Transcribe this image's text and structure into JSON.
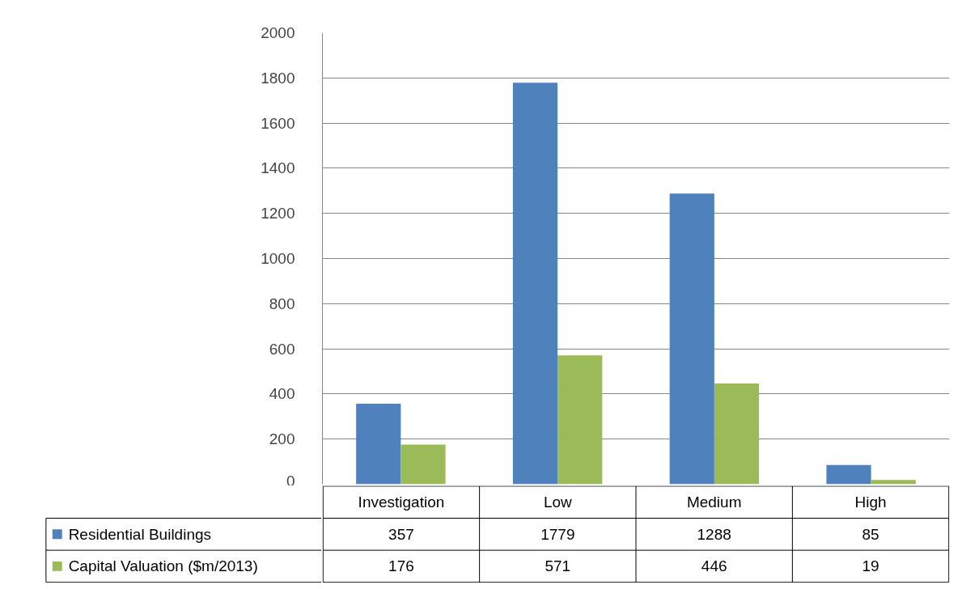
{
  "chart_data": {
    "type": "bar",
    "categories": [
      "Investigation",
      "Low",
      "Medium",
      "High"
    ],
    "series": [
      {
        "name": "Residential Buildings",
        "color": "#4f81bd",
        "values": [
          357,
          1779,
          1288,
          85
        ]
      },
      {
        "name": "Capital Valuation ($m/2013)",
        "color": "#9bbb59",
        "values": [
          176,
          571,
          446,
          19
        ]
      }
    ],
    "ylim": [
      0,
      2000
    ],
    "yticks": [
      0,
      200,
      400,
      600,
      800,
      1000,
      1200,
      1400,
      1600,
      1800,
      2000
    ],
    "grid": "y",
    "legend": "bottom",
    "data_labels": true
  }
}
